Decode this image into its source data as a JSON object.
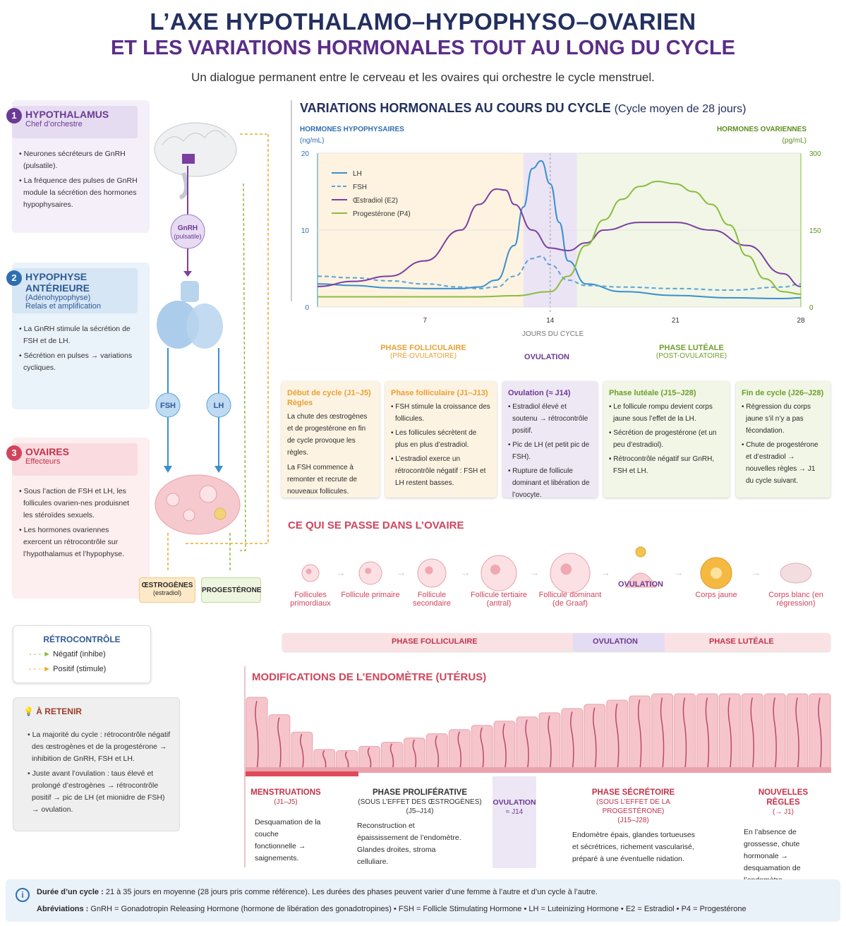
{
  "header": {
    "title1": "L’AXE HYPOTHALAMO–HYPOPHYSO–OVARIEN",
    "title2": "ET LES VARIATIONS HORMONALES TOUT AU LONG DU CYCLE",
    "subtitle": "Un dialogue permanent entre le cerveau et les ovaires qui orchestre le cycle menstruel."
  },
  "hypothalamus": {
    "num": "1",
    "name": "HYPOTHALAMUS",
    "sub": "Chef d’orchestre",
    "b1": "• Neurones sécréteurs de GnRH (pulsatile).",
    "b2": "• La fréquence des pulses de GnRH module la sécrétion des hormones hypophysaires."
  },
  "hypophyse": {
    "num": "2",
    "name": "HYPOPHYSE ANTÉRIEURE",
    "sub1": "(Adénohypophyse)",
    "sub2": "Relais et amplification",
    "b1": "• La GnRH stimule la sécrétion de FSH et de LH.",
    "b2": "• Sécrétion en pulses → variations cycliques."
  },
  "ovaires": {
    "num": "3",
    "name": "OVAIRES",
    "sub": "Effecteurs",
    "b1": "• Sous l’action de FSH et LH, les follicules ovarien-nes produisnet les stéroïdes sexuels.",
    "b2": "• Les hormones ovariennes exercent un rétrocontrôle sur l’hypothalamus et l’hypophyse."
  },
  "diagram": {
    "gnrh": "GnRH",
    "gnrh_sub": "(pulsatile)",
    "fsh": "FSH",
    "lh": "LH",
    "oestro": "ŒSTROGÈNES",
    "oestro_sub": "(estradiol)",
    "proge": "PROGESTÉRONE"
  },
  "retro": {
    "title": "RÉTROCONTRÔLE",
    "neg": "Négatif (inhibe)",
    "pos": "Positif (stimule)"
  },
  "retenir": {
    "title": "À RETENIR",
    "b1": "• La majorité du cycle : rétrocontrôle négatif des œstrogènes et de la progestérone → inhibition de GnRH, FSH et LH.",
    "b2": "• Juste avant l’ovulation : taus élevé et prolongé d’estrogènes → rétrocontrôle positif → pic de LH (et mionidre de FSH) → ovulation."
  },
  "chart_data": {
    "type": "line",
    "title": "VARIATIONS HORMONALES AU COURS DU CYCLE",
    "title_note": "(Cycle moyen de 28 jours)",
    "ylabel_left": "HORMONES HYPOPHYSAIRES",
    "unit_left": "(ng/mL)",
    "ylabel_right": "HORMONES OVARIENNES",
    "unit_right": "(pg/mL)",
    "xlabel": "JOURS DU CYCLE",
    "ylim_left": [
      0,
      20
    ],
    "ylim_right": [
      0,
      300
    ],
    "yticks_left": [
      "0",
      "10",
      "20"
    ],
    "yticks_right": [
      "0",
      "150",
      "300"
    ],
    "xlim": [
      1,
      28
    ],
    "xticks": [
      "7",
      "14",
      "21",
      "28"
    ],
    "legend_pos": "top-left",
    "series": [
      {
        "name": "LH",
        "axis": "left",
        "color": "#3a8fcf",
        "dash": false,
        "x": [
          1,
          3,
          5,
          7,
          9,
          10,
          11,
          12,
          12.5,
          13,
          13.5,
          14,
          14.5,
          15,
          16,
          18,
          21,
          24,
          27,
          28
        ],
        "y": [
          3,
          2.8,
          2.5,
          2.4,
          2.4,
          2.6,
          3.5,
          8,
          13,
          18,
          19,
          16,
          11,
          6,
          3,
          2,
          1.5,
          1.2,
          1.1,
          1.2
        ]
      },
      {
        "name": "FSH",
        "axis": "left",
        "color": "#5aa3d8",
        "dash": true,
        "x": [
          1,
          3,
          5,
          7,
          9,
          10,
          11,
          12,
          13,
          13.5,
          14,
          15,
          16,
          18,
          21,
          24,
          27,
          28
        ],
        "y": [
          4,
          3.8,
          3.4,
          3,
          2.6,
          2.4,
          2.6,
          4,
          6.3,
          6.6,
          5.5,
          3.5,
          2.8,
          2.6,
          2.4,
          2.2,
          2.6,
          3
        ]
      },
      {
        "name": "Œstradiol (E2)",
        "axis": "right",
        "color": "#7b3fa0",
        "dash": false,
        "x": [
          1,
          3,
          5,
          7,
          9,
          10,
          11,
          11.5,
          12,
          13,
          14,
          15,
          16,
          17,
          19,
          21,
          23,
          25,
          27,
          28
        ],
        "y": [
          40,
          50,
          60,
          90,
          150,
          200,
          230,
          228,
          200,
          150,
          115,
          110,
          125,
          150,
          165,
          165,
          150,
          120,
          65,
          40
        ]
      },
      {
        "name": "Progestérone (P4)",
        "axis": "right",
        "color": "#8bbb3f",
        "dash": false,
        "x": [
          1,
          4,
          7,
          10,
          12,
          14,
          15,
          16,
          17,
          18,
          19,
          20,
          21,
          22,
          23,
          24,
          25,
          26,
          27,
          28
        ],
        "y": [
          20,
          20,
          20,
          20,
          22,
          30,
          60,
          120,
          170,
          210,
          235,
          245,
          240,
          225,
          200,
          160,
          100,
          55,
          30,
          25
        ]
      }
    ]
  },
  "phases": {
    "fol": "PHASE FOLLICULAIRE",
    "fol_sub": "(PRÉ-OVULATOIRE)",
    "ovu": "OVULATION",
    "lut": "PHASE LUTÉALE",
    "lut_sub": "(POST-OVULATOIRE)"
  },
  "boxes": [
    {
      "h1": "Début de cycle (J1–J5)",
      "h2": "Règles",
      "b1": "La chute des œstrogènes et de progestérone en fin de cycle provoque les règles.",
      "b2": "La FSH commence à remonter et recrute de nouveaux follicules."
    },
    {
      "h1": "Phase folliculaire (J1–J13)",
      "b1": "• FSH stimule la croissance des follicules.",
      "b2": "• Les follicules sécrètent de plus en plus d’estradiol.",
      "b3": "• L’estradiol exerce un rétrocontrôle négatif : FSH et LH restent basses."
    },
    {
      "h1": "Ovulation (≈ J14)",
      "b1": "• Estradiol élevé et soutenu → rétrocontrôle positif.",
      "b2": "• Pic de LH (et petit pic de FSH).",
      "b3": "• Rupture de follicule dominant et libération de l’ovocyte."
    },
    {
      "h1": "Phase lutéale (J15–J28)",
      "b1": "• Le follicule rompu devient corps jaune sous l’effet de la LH.",
      "b2": "• Sécrétion de progestérone (et un peu d’estradiol).",
      "b3": "• Rétrocontrôle négatif sur GnRH, FSH et LH."
    },
    {
      "h1": "Fin de cycle (J26–J28)",
      "b1": "• Régression du corps jaune s’il n’y a pas fécondation.",
      "b2": "• Chute de progestérone et d’estradiol → nouvelles règles → J1 du cycle suivant."
    }
  ],
  "ovaire": {
    "title": "CE QUI SE PASSE DANS L’OVAIRE",
    "stages": [
      "Follicules primordiaux",
      "Follicule primaire",
      "Follicule secondaire",
      "Follicule tertiaire (antral)",
      "Follicule dominant (de Graaf)",
      "OVULATION",
      "Corps jaune",
      "Corps blanc (en régression)"
    ],
    "bar_fol": "PHASE FOLLICULAIRE",
    "bar_ovu": "OVULATION",
    "bar_lut": "PHASE LUTÉALE"
  },
  "endometre": {
    "title": "MODIFICATIONS DE L’ENDOMÈTRE (UTÉRUS)",
    "c1_h": "MENSTRUATIONS",
    "c1_s": "(J1–J5)",
    "c1_t": "Desquamation de la couche fonctionnelle → saignements.",
    "c2_h": "PHASE PROLIFÉRATIVE",
    "c2_s": "(SOUS L’EFFET DES ŒSTROGÈNES)",
    "c2_s2": "(J5–J14)",
    "c2_t": "Reconstruction et épaississement de l’endomètre. Glandes droites, stroma celluliare.",
    "c3_h": "OVULATION",
    "c3_s": "≈ J14",
    "c4_h": "PHASE SÉCRÉTOIRE",
    "c4_s": "(SOUS L’EFFET DE LA PROGESTÉRONE)",
    "c4_s2": "(J15–J28)",
    "c4_t": "Endomètre épais, glandes tortueuses et sécrétrices, richement vascularisé, préparé à une éventuelle nidation.",
    "c5_h": "NOUVELLES RÈGLES",
    "c5_s": "(→ J1)",
    "c5_t": "En l’absence de grossesse, chute hormonale → desquamation de l’endomètre."
  },
  "footer": {
    "l1_b": "Durée d’un cycle :",
    "l1": "21 à 35 jours en moyenne (28 jours pris comme référence). Les durées des phases peuvent varier d’une femme à l’autre et d’un cycle à l’autre.",
    "l2_b": "Abréviations :",
    "l2": "GnRH = Gonadotropin Releasing Hormone (hormone de libération des gonadotropines) • FSH = Follicle Stimulating Hormone • LH = Luteinizing Hormone • E2 = Estradiol • P4 = Progestérone"
  }
}
